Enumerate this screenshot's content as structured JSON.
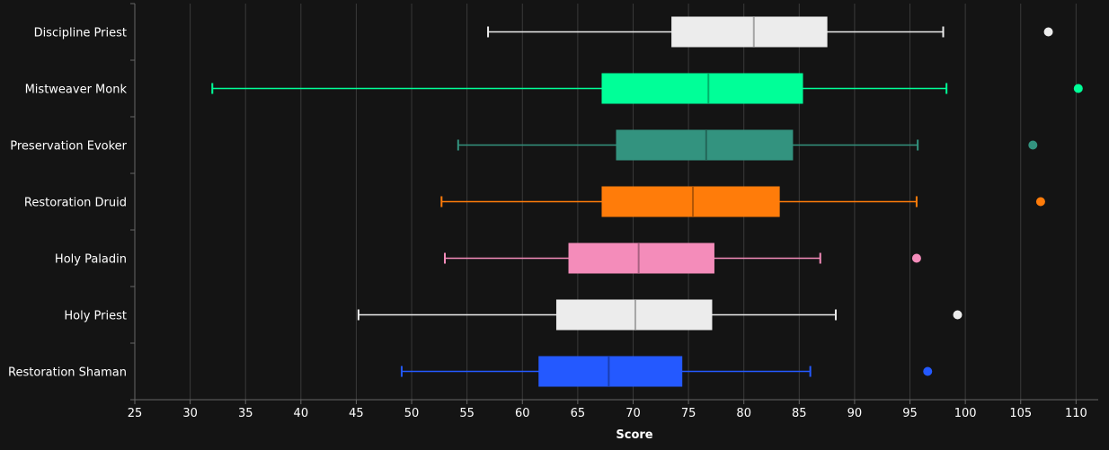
{
  "chart_data": {
    "type": "box",
    "orientation": "horizontal",
    "xlabel": "Score",
    "xlim": [
      25,
      112
    ],
    "xticks": [
      25,
      30,
      35,
      40,
      45,
      50,
      55,
      60,
      65,
      70,
      75,
      80,
      85,
      90,
      95,
      100,
      105,
      110
    ],
    "grid": "vertical",
    "background": "#141414",
    "series": [
      {
        "name": "Discipline Priest",
        "color": "#ECECEC",
        "whisker_low": 56.9,
        "q1": 73.5,
        "median": 80.9,
        "q3": 87.5,
        "whisker_high": 98.0,
        "outliers": [
          107.5
        ]
      },
      {
        "name": "Mistweaver Monk",
        "color": "#00FF98",
        "whisker_low": 32.0,
        "q1": 67.2,
        "median": 76.8,
        "q3": 85.3,
        "whisker_high": 98.3,
        "outliers": [
          110.2
        ]
      },
      {
        "name": "Preservation Evoker",
        "color": "#33937F",
        "whisker_low": 54.2,
        "q1": 68.5,
        "median": 76.6,
        "q3": 84.4,
        "whisker_high": 95.7,
        "outliers": [
          106.1
        ]
      },
      {
        "name": "Restoration Druid",
        "color": "#FF7C0A",
        "whisker_low": 52.7,
        "q1": 67.2,
        "median": 75.4,
        "q3": 83.2,
        "whisker_high": 95.6,
        "outliers": [
          106.8
        ]
      },
      {
        "name": "Holy Paladin",
        "color": "#F48CBA",
        "whisker_low": 53.0,
        "q1": 64.2,
        "median": 70.5,
        "q3": 77.3,
        "whisker_high": 86.9,
        "outliers": [
          95.6
        ]
      },
      {
        "name": "Holy Priest",
        "color": "#ECECEC",
        "whisker_low": 45.2,
        "q1": 63.1,
        "median": 70.2,
        "q3": 77.1,
        "whisker_high": 88.3,
        "outliers": [
          99.3
        ]
      },
      {
        "name": "Restoration Shaman",
        "color": "#2459FF",
        "whisker_low": 49.1,
        "q1": 61.5,
        "median": 67.8,
        "q3": 74.4,
        "whisker_high": 86.0,
        "outliers": [
          96.6
        ]
      }
    ]
  }
}
